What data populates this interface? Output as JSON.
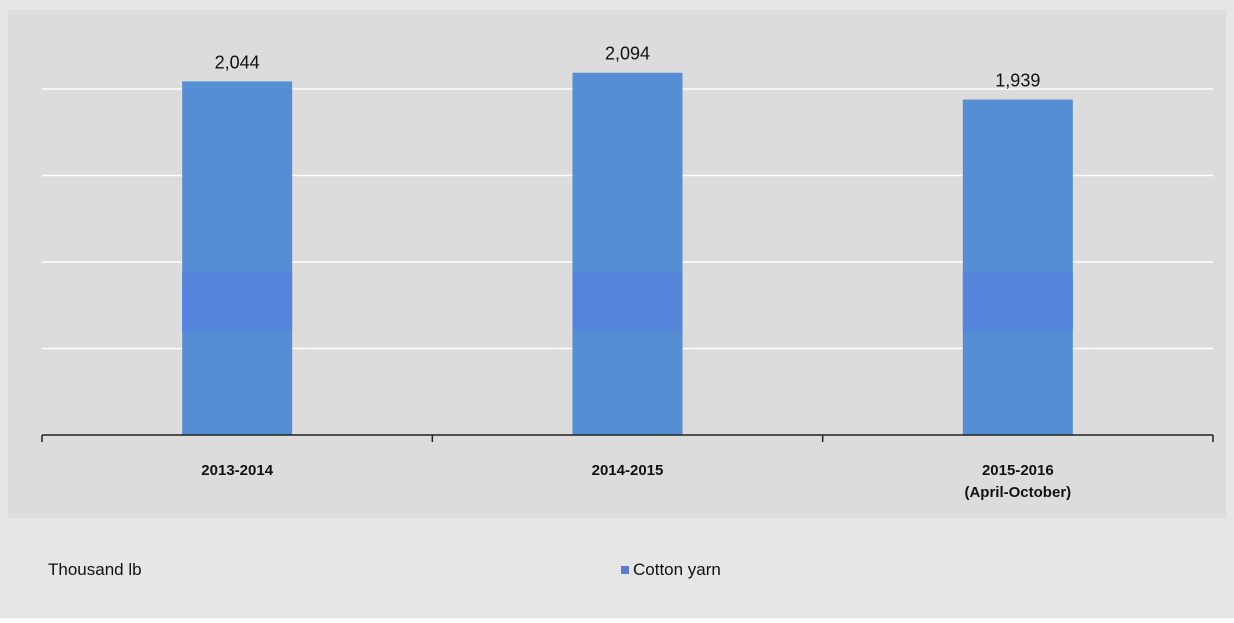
{
  "chart_data": {
    "type": "bar",
    "categories": [
      [
        "2013-2014"
      ],
      [
        "2014-2015"
      ],
      [
        "2015-2016",
        "(April-October)"
      ]
    ],
    "series": [
      {
        "name": "Cotton yarn",
        "values": [
          2044,
          2094,
          1939
        ],
        "labels": [
          "2,044",
          "2,094",
          "1,939"
        ]
      }
    ],
    "unit_label": "Thousand lb",
    "ylim": [
      0,
      2500
    ],
    "grid": true,
    "legend_position": "bottom-center",
    "colors": {
      "plot_background": "#dcdcdc",
      "frame_background": "#e6e6e6",
      "bar": "#558ed5",
      "bar_band": "#5584dc",
      "gridline": "#ffffff",
      "axis": "#222222",
      "legend_marker": "#5b7fce"
    }
  }
}
